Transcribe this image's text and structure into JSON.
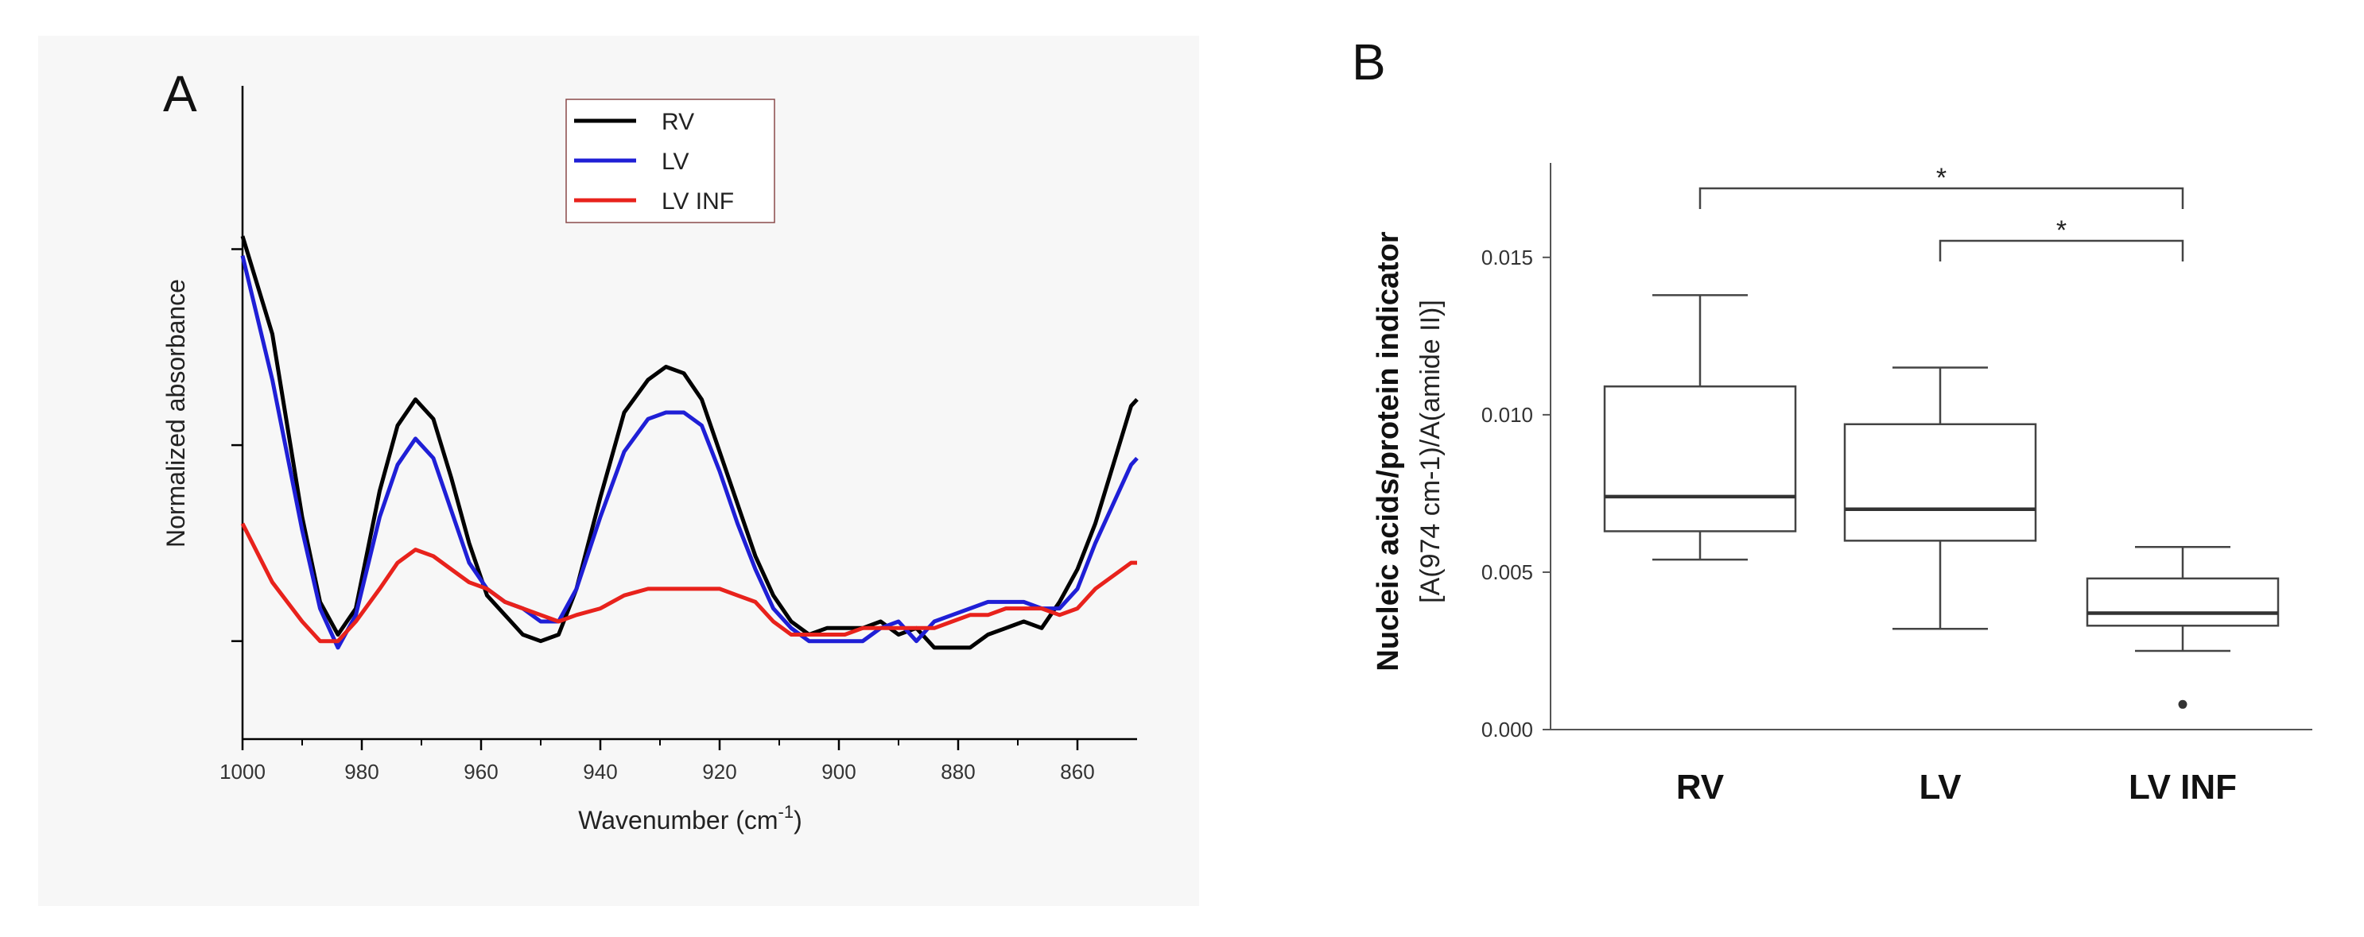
{
  "chart_data": [
    {
      "panel": "A",
      "type": "line",
      "xlabel": "Wavenumber (cm-1)",
      "xlabel_base": "Wavenumber (cm",
      "xlabel_sup": "-1",
      "xlabel_close": ")",
      "ylabel": "Normalized absorbance",
      "xlim": [
        1000,
        850
      ],
      "ylim": [
        0,
        1
      ],
      "xticks": [
        1000,
        980,
        960,
        940,
        920,
        900,
        880,
        860
      ],
      "legend": [
        "RV",
        "LV",
        "LV INF"
      ],
      "series": [
        {
          "name": "RV",
          "color": "#000000",
          "x": [
            1000,
            995,
            990,
            987,
            984,
            981,
            977,
            974,
            971,
            968,
            965,
            962,
            959,
            956,
            953,
            950,
            947,
            944,
            940,
            936,
            932,
            929,
            926,
            923,
            920,
            917,
            914,
            911,
            908,
            905,
            902,
            899,
            896,
            893,
            890,
            887,
            884,
            881,
            878,
            875,
            872,
            869,
            866,
            863,
            860,
            857,
            854,
            851,
            850
          ],
          "y": [
            0.77,
            0.62,
            0.34,
            0.21,
            0.16,
            0.2,
            0.38,
            0.48,
            0.52,
            0.49,
            0.4,
            0.3,
            0.22,
            0.19,
            0.16,
            0.15,
            0.16,
            0.23,
            0.37,
            0.5,
            0.55,
            0.57,
            0.56,
            0.52,
            0.44,
            0.36,
            0.28,
            0.22,
            0.18,
            0.16,
            0.17,
            0.17,
            0.17,
            0.18,
            0.16,
            0.17,
            0.14,
            0.14,
            0.14,
            0.16,
            0.17,
            0.18,
            0.17,
            0.21,
            0.26,
            0.33,
            0.42,
            0.51,
            0.52
          ]
        },
        {
          "name": "LV",
          "color": "#1f1fd6",
          "x": [
            1000,
            995,
            990,
            987,
            984,
            981,
            977,
            974,
            971,
            968,
            965,
            962,
            959,
            956,
            953,
            950,
            947,
            944,
            940,
            936,
            932,
            929,
            926,
            923,
            920,
            917,
            914,
            911,
            908,
            905,
            902,
            899,
            896,
            893,
            890,
            887,
            884,
            881,
            878,
            875,
            872,
            869,
            866,
            863,
            860,
            857,
            854,
            851,
            850
          ],
          "y": [
            0.74,
            0.55,
            0.32,
            0.2,
            0.14,
            0.19,
            0.34,
            0.42,
            0.46,
            0.43,
            0.35,
            0.27,
            0.23,
            0.21,
            0.2,
            0.18,
            0.18,
            0.23,
            0.34,
            0.44,
            0.49,
            0.5,
            0.5,
            0.48,
            0.41,
            0.33,
            0.26,
            0.2,
            0.17,
            0.15,
            0.15,
            0.15,
            0.15,
            0.17,
            0.18,
            0.15,
            0.18,
            0.19,
            0.2,
            0.21,
            0.21,
            0.21,
            0.2,
            0.2,
            0.23,
            0.3,
            0.36,
            0.42,
            0.43
          ]
        },
        {
          "name": "LV INF",
          "color": "#e8221c",
          "x": [
            1000,
            995,
            990,
            987,
            984,
            981,
            977,
            974,
            971,
            968,
            965,
            962,
            959,
            956,
            953,
            950,
            947,
            944,
            940,
            936,
            932,
            929,
            926,
            923,
            920,
            917,
            914,
            911,
            908,
            905,
            902,
            899,
            896,
            893,
            890,
            887,
            884,
            881,
            878,
            875,
            872,
            869,
            866,
            863,
            860,
            857,
            854,
            851,
            850
          ],
          "y": [
            0.33,
            0.24,
            0.18,
            0.15,
            0.15,
            0.18,
            0.23,
            0.27,
            0.29,
            0.28,
            0.26,
            0.24,
            0.23,
            0.21,
            0.2,
            0.19,
            0.18,
            0.19,
            0.2,
            0.22,
            0.23,
            0.23,
            0.23,
            0.23,
            0.23,
            0.22,
            0.21,
            0.18,
            0.16,
            0.16,
            0.16,
            0.16,
            0.17,
            0.17,
            0.17,
            0.17,
            0.17,
            0.18,
            0.19,
            0.19,
            0.2,
            0.2,
            0.2,
            0.19,
            0.2,
            0.23,
            0.25,
            0.27,
            0.27
          ]
        }
      ]
    },
    {
      "panel": "B",
      "type": "box",
      "categories": [
        "RV",
        "LV",
        "LV INF"
      ],
      "ylabel_line1": "Nucleic acids/protein indicator",
      "ylabel_line2": "[A(974 cm-1)/A(amide II)]",
      "ylim": [
        0,
        0.018
      ],
      "yticks": [
        "0.000",
        "0.005",
        "0.010",
        "0.015"
      ],
      "boxes": [
        {
          "name": "RV",
          "whisker_low": 0.0054,
          "q1": 0.0063,
          "median": 0.0074,
          "q3": 0.0109,
          "whisker_high": 0.0138,
          "outliers": []
        },
        {
          "name": "LV",
          "whisker_low": 0.0032,
          "q1": 0.006,
          "median": 0.007,
          "q3": 0.0097,
          "whisker_high": 0.0115,
          "outliers": []
        },
        {
          "name": "LV INF",
          "whisker_low": 0.0025,
          "q1": 0.0033,
          "median": 0.0037,
          "q3": 0.0048,
          "whisker_high": 0.0058,
          "outliers": [
            0.0008
          ]
        }
      ],
      "significance": [
        {
          "from": "RV",
          "to": "LV INF",
          "label": "*"
        },
        {
          "from": "LV",
          "to": "LV INF",
          "label": "*"
        }
      ]
    }
  ]
}
